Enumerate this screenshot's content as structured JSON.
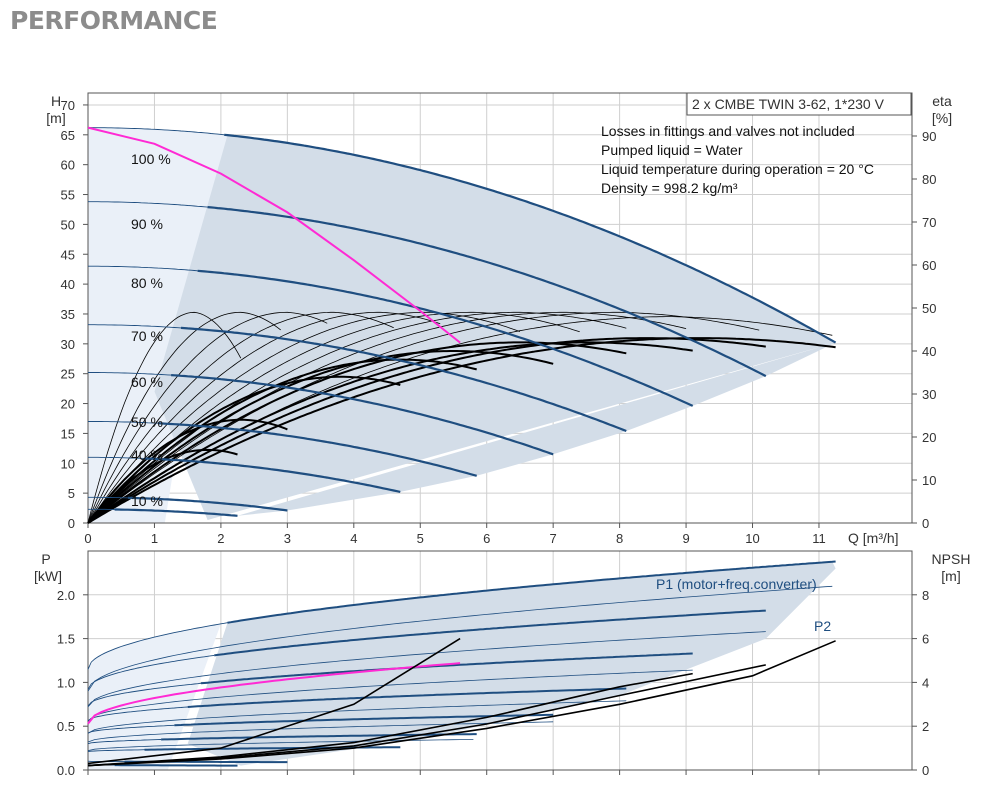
{
  "page": {
    "title": "PERFORMANCE"
  },
  "colors": {
    "grid": "#cfcfcf",
    "band": "#d3dde8",
    "band_light": "#eaf0f8",
    "speed_curve": "#1f4e80",
    "eff_curve": "#000000",
    "duty": "#ff2ad4",
    "text": "#1f4e80"
  },
  "chart_data": [
    {
      "type": "line",
      "id": "head",
      "title": "2 x CMBE TWIN 3-62, 1*230 V",
      "notes": [
        "Losses in fittings and valves not included",
        "Pumped liquid = Water",
        "Liquid temperature during operation = 20 °C",
        "Density = 998.2 kg/m³"
      ],
      "xlabel": "Q [m³/h]",
      "ylabel_name": "H",
      "ylabel_unit": "[m]",
      "y2label_name": "eta",
      "y2label_unit": "[%]",
      "xlim": [
        0,
        12.4
      ],
      "ylim": [
        0,
        72
      ],
      "y2lim": [
        0,
        100
      ],
      "xticks": [
        "0",
        "1",
        "2",
        "3",
        "4",
        "5",
        "6",
        "7",
        "8",
        "9",
        "10",
        "11"
      ],
      "yticks": [
        "0",
        "5",
        "10",
        "15",
        "20",
        "25",
        "30",
        "35",
        "40",
        "45",
        "50",
        "55",
        "60",
        "65",
        "70"
      ],
      "y2ticks": [
        "0",
        "10",
        "20",
        "30",
        "40",
        "50",
        "60",
        "70",
        "80",
        "90"
      ],
      "grid": true,
      "speed_labels": [
        "100 %",
        "90 %",
        "80 %",
        "70 %",
        "60 %",
        "50 %",
        "40 %",
        "10 %"
      ],
      "speed_curves": [
        {
          "pct": 100,
          "H0": 66.2,
          "Qend": 11.25,
          "Hend": 30.2,
          "Qstart": 2.1
        },
        {
          "pct": 90,
          "H0": 53.8,
          "Qend": 10.2,
          "Hend": 24.6,
          "Qstart": 1.85
        },
        {
          "pct": 80,
          "H0": 43.0,
          "Qend": 9.1,
          "Hend": 19.6,
          "Qstart": 1.7
        },
        {
          "pct": 70,
          "H0": 33.2,
          "Qend": 8.1,
          "Hend": 15.4,
          "Qstart": 1.45
        },
        {
          "pct": 60,
          "H0": 25.2,
          "Qend": 7.0,
          "Hend": 11.5,
          "Qstart": 1.3
        },
        {
          "pct": 50,
          "H0": 17.0,
          "Qend": 5.85,
          "Hend": 7.9,
          "Qstart": 1.1
        },
        {
          "pct": 40,
          "H0": 11.0,
          "Qend": 4.7,
          "Hend": 5.2,
          "Qstart": 0.9
        },
        {
          "pct": 20,
          "H0": 4.3,
          "Qend": 3.0,
          "Hend": 2.1,
          "Qstart": 0.6
        },
        {
          "pct": 10,
          "H0": 2.3,
          "Qend": 2.25,
          "Hend": 1.2,
          "Qstart": 0.4
        }
      ],
      "eff_curves": [
        {
          "Qpeak": 1.6,
          "etaPeak": 49,
          "Qend": 2.3
        },
        {
          "Qpeak": 2.3,
          "etaPeak": 49,
          "Qend": 2.9
        },
        {
          "Qpeak": 3.0,
          "etaPeak": 49,
          "Qend": 3.6
        },
        {
          "Qpeak": 3.7,
          "etaPeak": 49,
          "Qend": 4.6
        },
        {
          "Qpeak": 4.4,
          "etaPeak": 49,
          "Qend": 5.3
        },
        {
          "Qpeak": 5.1,
          "etaPeak": 49,
          "Qend": 6.5
        },
        {
          "Qpeak": 5.8,
          "etaPeak": 49,
          "Qend": 7.4
        },
        {
          "Qpeak": 6.5,
          "etaPeak": 49,
          "Qend": 8.1
        },
        {
          "Qpeak": 7.2,
          "etaPeak": 49,
          "Qend": 9.0
        },
        {
          "Qpeak": 8.0,
          "etaPeak": 49,
          "Qend": 10.1
        },
        {
          "Qpeak": 8.8,
          "etaPeak": 48,
          "Qend": 11.2
        }
      ],
      "eff_curves_bold": [
        {
          "Qpeak": 1.8,
          "etaPeak": 17,
          "Qend": 2.25
        },
        {
          "Qpeak": 2.3,
          "etaPeak": 24,
          "Qend": 3.0
        },
        {
          "Qpeak": 3.8,
          "etaPeak": 34,
          "Qend": 4.7
        },
        {
          "Qpeak": 4.7,
          "etaPeak": 38,
          "Qend": 5.85
        },
        {
          "Qpeak": 5.5,
          "etaPeak": 40,
          "Qend": 7.0
        },
        {
          "Qpeak": 6.5,
          "etaPeak": 42,
          "Qend": 8.1
        },
        {
          "Qpeak": 7.5,
          "etaPeak": 42,
          "Qend": 9.1
        },
        {
          "Qpeak": 8.4,
          "etaPeak": 43,
          "Qend": 10.2
        },
        {
          "Qpeak": 9.2,
          "etaPeak": 43,
          "Qend": 11.25
        }
      ],
      "duty_curve": {
        "Q": [
          0,
          1.0,
          2.0,
          3.0,
          4.0,
          5.0,
          5.6
        ],
        "H": [
          66.2,
          63.5,
          58.5,
          52.0,
          44.0,
          35.5,
          30.2
        ]
      }
    },
    {
      "type": "line",
      "id": "power",
      "ylabel_name": "P",
      "ylabel_unit": "[kW]",
      "y2label_name": "NPSH",
      "y2label_unit": "[m]",
      "xlim": [
        0,
        12.4
      ],
      "ylim": [
        0,
        2.5
      ],
      "y2lim": [
        0,
        10
      ],
      "yticks": [
        "0.0",
        "0.5",
        "1.0",
        "1.5",
        "2.0"
      ],
      "y2ticks": [
        "0",
        "2",
        "4",
        "6",
        "8"
      ],
      "grid": true,
      "legend_p1": "P1 (motor+freq.converter)",
      "legend_p2": "P2",
      "p1_curves": [
        {
          "P0": 1.15,
          "Pend": 2.38,
          "Qend": 11.25
        },
        {
          "P0": 0.92,
          "Pend": 1.82,
          "Qend": 10.2
        },
        {
          "P0": 0.73,
          "Pend": 1.33,
          "Qend": 9.1
        },
        {
          "P0": 0.56,
          "Pend": 0.93,
          "Qend": 8.1
        },
        {
          "P0": 0.42,
          "Pend": 0.63,
          "Qend": 7.0
        },
        {
          "P0": 0.3,
          "Pend": 0.41,
          "Qend": 5.85
        },
        {
          "P0": 0.21,
          "Pend": 0.26,
          "Qend": 4.7
        },
        {
          "P0": 0.1,
          "Pend": 0.09,
          "Qend": 3.0
        },
        {
          "P0": 0.06,
          "Pend": 0.05,
          "Qend": 2.25
        }
      ],
      "p2_curves": [
        {
          "P0": 0.9,
          "Pend": 2.1,
          "Qend": 11.25
        },
        {
          "P0": 0.72,
          "Pend": 1.58,
          "Qend": 10.2
        },
        {
          "P0": 0.56,
          "Pend": 1.14,
          "Qend": 9.1
        },
        {
          "P0": 0.42,
          "Pend": 0.79,
          "Qend": 8.1
        },
        {
          "P0": 0.32,
          "Pend": 0.55,
          "Qend": 7.0
        },
        {
          "P0": 0.22,
          "Pend": 0.35,
          "Qend": 5.85
        }
      ],
      "duty_p": {
        "P0": 0.53,
        "Pend": 1.22,
        "Qend": 5.6
      },
      "npsh_curves": [
        {
          "Q": [
            0,
            2,
            4,
            6,
            8,
            10,
            11.25
          ],
          "N": [
            0.2,
            0.5,
            1.0,
            1.9,
            3.0,
            4.3,
            5.9
          ]
        },
        {
          "Q": [
            0,
            2,
            4,
            6,
            8,
            10.2
          ],
          "N": [
            0.2,
            0.55,
            1.1,
            2.1,
            3.4,
            4.8
          ]
        },
        {
          "Q": [
            0,
            2,
            4,
            6,
            8,
            9.1
          ],
          "N": [
            0.2,
            0.6,
            1.25,
            2.4,
            3.8,
            4.4
          ]
        },
        {
          "Q": [
            0,
            2,
            4,
            5.6
          ],
          "N": [
            0.3,
            1.0,
            3.0,
            6.0
          ]
        }
      ]
    }
  ]
}
